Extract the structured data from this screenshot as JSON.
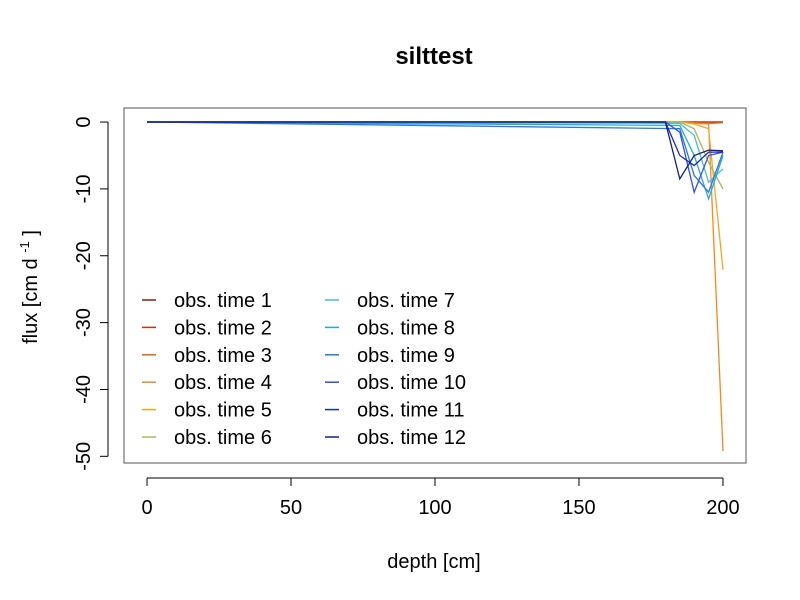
{
  "chart_data": {
    "type": "line",
    "title": "silttest",
    "xlabel": "depth [cm]",
    "ylabel_main": "flux [cm d",
    "ylabel_sup": "-1",
    "ylabel_tail": "]",
    "xlim": [
      -8,
      208
    ],
    "ylim": [
      -51,
      2.1
    ],
    "x_ticks": [
      0,
      50,
      100,
      150,
      200
    ],
    "y_ticks": [
      0,
      -10,
      -20,
      -30,
      -40,
      -50
    ],
    "legend_position": "bottom-left",
    "series": [
      {
        "name": "obs. time  1",
        "color": "#8B1A1A",
        "x": [
          0,
          180,
          190,
          195,
          200
        ],
        "y": [
          0,
          0,
          0,
          0,
          0
        ]
      },
      {
        "name": "obs. time  2",
        "color": "#C0321E",
        "x": [
          0,
          185,
          190,
          195,
          200
        ],
        "y": [
          0,
          0,
          0,
          0,
          0
        ]
      },
      {
        "name": "obs. time  3",
        "color": "#E0640F",
        "x": [
          0,
          185,
          190,
          195,
          200
        ],
        "y": [
          0,
          0,
          -0.1,
          -0.2,
          -0.1
        ]
      },
      {
        "name": "obs. time  4",
        "color": "#F28A1E",
        "x": [
          0,
          185,
          190,
          195,
          200
        ],
        "y": [
          0,
          0,
          -0.2,
          -0.3,
          -49.2
        ]
      },
      {
        "name": "obs. time  5",
        "color": "#F5A623",
        "x": [
          0,
          185,
          190,
          195,
          200
        ],
        "y": [
          0,
          0,
          -0.3,
          -1.0,
          -22.1
        ]
      },
      {
        "name": "obs. time  6",
        "color": "#A8B860",
        "x": [
          0,
          185,
          190,
          195,
          200
        ],
        "y": [
          0,
          0,
          -1.0,
          -6.0,
          -10.0
        ]
      },
      {
        "name": "obs. time  7",
        "color": "#48C0C8",
        "x": [
          0,
          185,
          190,
          195,
          200
        ],
        "y": [
          0,
          -0.2,
          -2.0,
          -9.0,
          -7.0
        ]
      },
      {
        "name": "obs. time  8",
        "color": "#2AA8DC",
        "x": [
          0,
          185,
          190,
          195,
          200
        ],
        "y": [
          0,
          -0.5,
          -5.0,
          -11.5,
          -5.0
        ]
      },
      {
        "name": "obs. time  9",
        "color": "#2A7ADC",
        "x": [
          0,
          185,
          190,
          195,
          200
        ],
        "y": [
          0,
          -1.0,
          -8.0,
          -10.5,
          -4.5
        ]
      },
      {
        "name": "obs. time  10",
        "color": "#3050E0",
        "x": [
          0,
          180,
          185,
          190,
          195,
          200
        ],
        "y": [
          0,
          0,
          -1.5,
          -10.5,
          -5.0,
          -4.5
        ]
      },
      {
        "name": "obs. time  11",
        "color": "#1A2AC0",
        "x": [
          0,
          180,
          185,
          190,
          195,
          200
        ],
        "y": [
          0,
          0,
          -5.0,
          -6.5,
          -4.5,
          -4.5
        ]
      },
      {
        "name": "obs. time  12",
        "color": "#141E80",
        "x": [
          0,
          180,
          185,
          190,
          195,
          200
        ],
        "y": [
          0,
          0,
          -8.5,
          -5.0,
          -4.2,
          -4.3
        ]
      }
    ]
  }
}
